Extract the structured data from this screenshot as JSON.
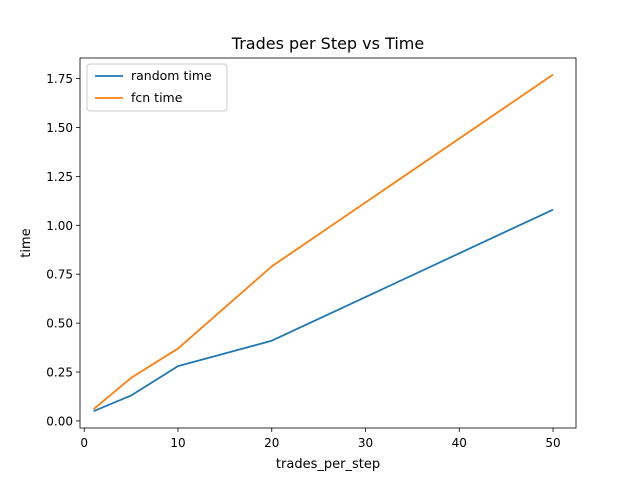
{
  "chart_data": {
    "type": "line",
    "title": "Trades per Step vs Time",
    "xlabel": "trades_per_step",
    "ylabel": "time",
    "x": [
      1,
      5,
      10,
      20,
      50
    ],
    "xlim": [
      -0.45,
      52.45
    ],
    "ylim": [
      -0.036,
      1.855
    ],
    "xticks": [
      0,
      10,
      20,
      30,
      40,
      50
    ],
    "yticks": [
      0.0,
      0.25,
      0.5,
      0.75,
      1.0,
      1.25,
      1.5,
      1.75
    ],
    "xtick_labels": [
      "0",
      "10",
      "20",
      "30",
      "40",
      "50"
    ],
    "ytick_labels": [
      "0.00",
      "0.25",
      "0.50",
      "0.75",
      "1.00",
      "1.25",
      "1.50",
      "1.75"
    ],
    "grid": false,
    "legend_position": "upper-left",
    "series": [
      {
        "name": "random time",
        "color": "#1f77b4",
        "values": [
          0.05,
          0.13,
          0.28,
          0.41,
          1.08
        ]
      },
      {
        "name": "fcn time",
        "color": "#ff7f0e",
        "values": [
          0.06,
          0.22,
          0.37,
          0.79,
          1.77
        ]
      }
    ]
  }
}
